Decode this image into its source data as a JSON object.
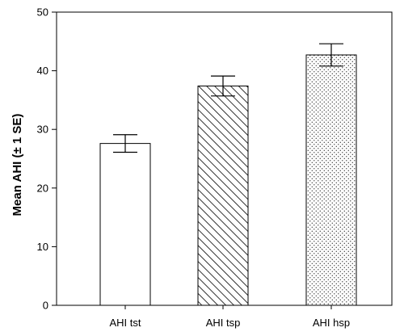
{
  "chart_data": {
    "type": "bar",
    "categories": [
      "AHI tst",
      "AHI tsp",
      "AHI hsp"
    ],
    "values": [
      27.6,
      37.4,
      42.7
    ],
    "errors": [
      1.5,
      1.7,
      1.9
    ],
    "patterns": [
      "none",
      "diagonal-hatch",
      "dots"
    ],
    "title": "",
    "xlabel": "",
    "ylabel": "Mean AHI (± 1 SE)",
    "ylim": [
      0,
      50
    ],
    "yticks": [
      0,
      10,
      20,
      30,
      40,
      50
    ],
    "grid": false,
    "legend": "none"
  }
}
